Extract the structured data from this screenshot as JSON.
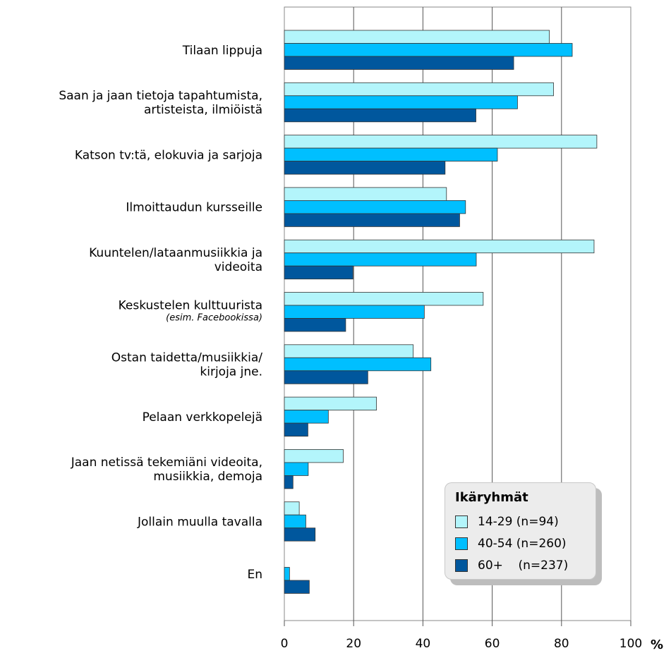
{
  "chart_data": {
    "type": "bar",
    "orientation": "horizontal",
    "categories": [
      {
        "lines": [
          "Tilaan lippuja"
        ],
        "note": ""
      },
      {
        "lines": [
          "Saan ja jaan tietoja  tapahtumista,",
          "artisteista, ilmiöistä"
        ],
        "note": ""
      },
      {
        "lines": [
          "Katson tv:tä, elokuvia ja sarjoja"
        ],
        "note": ""
      },
      {
        "lines": [
          "Ilmoittaudun kursseille"
        ],
        "note": ""
      },
      {
        "lines": [
          "Kuuntelen/lataanmusiikkia ja",
          "videoita"
        ],
        "note": ""
      },
      {
        "lines": [
          "Keskustelen kulttuurista"
        ],
        "note": "(esim. Facebookissa)"
      },
      {
        "lines": [
          "Ostan taidetta/musiikkia/",
          "kirjoja jne."
        ],
        "note": ""
      },
      {
        "lines": [
          "Pelaan verkkopelejä"
        ],
        "note": ""
      },
      {
        "lines": [
          "Jaan netissä tekemiäni videoita,",
          "musiikkia, demoja"
        ],
        "note": ""
      },
      {
        "lines": [
          "Jollain muulla tavalla"
        ],
        "note": ""
      },
      {
        "lines": [
          "En"
        ],
        "note": ""
      }
    ],
    "series": [
      {
        "name": "14-29 (n=94)",
        "color": "#b3f5fb",
        "values": [
          76.5,
          77.7,
          90.2,
          46.8,
          89.4,
          57.4,
          37.2,
          26.6,
          17.0,
          4.3,
          0
        ]
      },
      {
        "name": "40-54 (n=260)",
        "color": "#00bfff",
        "values": [
          83.1,
          67.3,
          61.5,
          52.3,
          55.4,
          40.4,
          42.3,
          12.7,
          6.9,
          6.2,
          1.5
        ]
      },
      {
        "name": "60+    (n=237)",
        "color": "#00579d",
        "values": [
          66.2,
          55.3,
          46.4,
          50.6,
          19.8,
          17.7,
          24.1,
          6.8,
          2.5,
          8.9,
          7.2
        ]
      }
    ],
    "xlim": [
      0,
      100
    ],
    "xticks": [
      "0",
      "20",
      "40",
      "60",
      "80",
      "100"
    ],
    "xunit": "%",
    "grid": true,
    "legend": {
      "title": "Ikäryhmät",
      "placement": "bottom-right"
    }
  }
}
